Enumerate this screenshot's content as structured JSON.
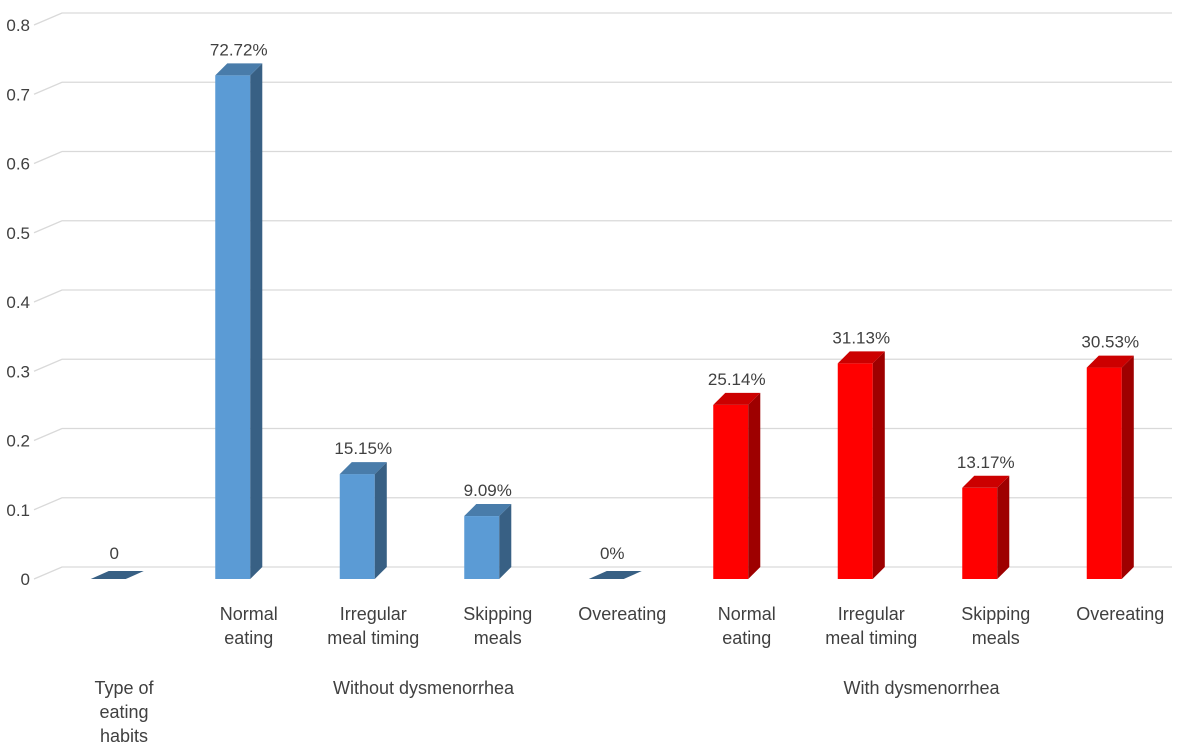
{
  "chart_data": {
    "type": "bar",
    "ylim": [
      0,
      0.8
    ],
    "y_ticks": [
      "0",
      "0.1",
      "0.2",
      "0.3",
      "0.4",
      "0.5",
      "0.6",
      "0.7",
      "0.8"
    ],
    "grid": true,
    "legend": "none",
    "x_title": [
      "Type of",
      "eating",
      "habits"
    ],
    "groups": [
      "Without dysmenorrhea",
      "With dysmenorrhea"
    ],
    "categories": [
      {
        "lines": [],
        "group": ""
      },
      {
        "lines": [
          "Normal",
          "eating"
        ],
        "group": "Without dysmenorrhea"
      },
      {
        "lines": [
          "Irregular",
          "meal timing"
        ],
        "group": "Without dysmenorrhea"
      },
      {
        "lines": [
          "Skipping",
          "meals"
        ],
        "group": "Without dysmenorrhea"
      },
      {
        "lines": [
          "Overeating"
        ],
        "group": "Without dysmenorrhea"
      },
      {
        "lines": [
          "Normal",
          "eating"
        ],
        "group": "With dysmenorrhea"
      },
      {
        "lines": [
          "Irregular",
          "meal timing"
        ],
        "group": "With dysmenorrhea"
      },
      {
        "lines": [
          "Skipping",
          "meals"
        ],
        "group": "With dysmenorrhea"
      },
      {
        "lines": [
          "Overeating"
        ],
        "group": "With dysmenorrhea"
      }
    ],
    "values": [
      0,
      0.7272,
      0.1515,
      0.0909,
      0,
      0.2514,
      0.3113,
      0.1317,
      0.3053
    ],
    "data_labels": [
      "0",
      "72.72%",
      "15.15%",
      "9.09%",
      "0%",
      "25.14%",
      "31.13%",
      "13.17%",
      "30.53%"
    ],
    "colors": [
      "#5B9BD5",
      "#5B9BD5",
      "#5B9BD5",
      "#5B9BD5",
      "#5B9BD5",
      "#FF0000",
      "#FF0000",
      "#FF0000",
      "#FF0000"
    ]
  }
}
